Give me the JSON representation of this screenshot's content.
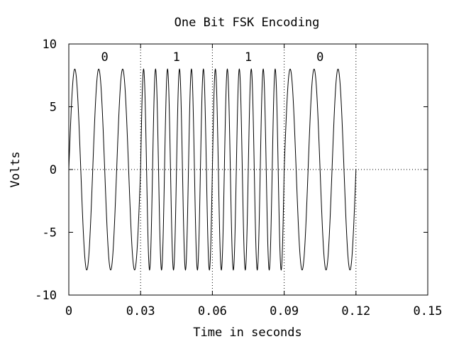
{
  "chart_data": {
    "type": "line",
    "title": "One Bit FSK Encoding",
    "xlabel": "Time in seconds",
    "ylabel": "Volts",
    "xlim": [
      0,
      0.15
    ],
    "ylim": [
      -10,
      10
    ],
    "x_ticks": [
      0,
      0.03,
      0.06,
      0.09,
      0.12,
      0.15
    ],
    "x_tick_labels": [
      "0",
      "0.03",
      "0.06",
      "0.09",
      "0.12",
      "0.15"
    ],
    "y_ticks": [
      10,
      5,
      0,
      -5,
      -10
    ],
    "y_tick_labels": [
      "10",
      "5",
      "0",
      "-5",
      "-10"
    ],
    "grid": "dotted lines at bit boundaries and y=0",
    "bit_boundaries": [
      0.03,
      0.06,
      0.09,
      0.12
    ],
    "bits": [
      {
        "label": "0",
        "start": 0,
        "end": 0.03,
        "frequency_hz": 100
      },
      {
        "label": "1",
        "start": 0.03,
        "end": 0.06,
        "frequency_hz": 200
      },
      {
        "label": "1",
        "start": 0.06,
        "end": 0.09,
        "frequency_hz": 200
      },
      {
        "label": "0",
        "start": 0.09,
        "end": 0.12,
        "frequency_hz": 100
      }
    ],
    "series": [
      {
        "amplitude": 8,
        "waveform": "sine",
        "color": "#000000"
      }
    ]
  }
}
